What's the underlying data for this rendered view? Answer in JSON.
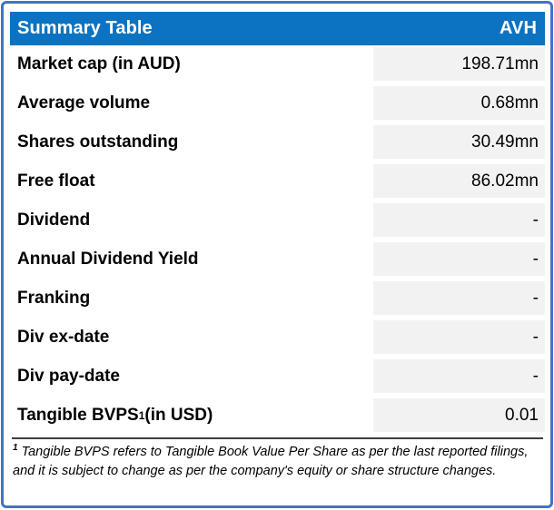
{
  "header": {
    "title": "Summary Table",
    "ticker": "AVH"
  },
  "rows": [
    {
      "label": "Market cap (in AUD)",
      "value": "198.71mn"
    },
    {
      "label": "Average volume",
      "value": "0.68mn"
    },
    {
      "label": "Shares outstanding",
      "value": "30.49mn"
    },
    {
      "label": "Free float",
      "value": "86.02mn"
    },
    {
      "label": "Dividend",
      "value": "-"
    },
    {
      "label": "Annual Dividend Yield",
      "value": "-"
    },
    {
      "label": "Franking",
      "value": "-"
    },
    {
      "label": "Div ex-date",
      "value": "-"
    },
    {
      "label": "Div pay-date",
      "value": "-"
    },
    {
      "label": "Tangible BVPS",
      "label_superscript": "1",
      "label_suffix": " (in USD)",
      "value": "0.01"
    }
  ],
  "footnote": {
    "superscript": "1",
    "text": " Tangible BVPS refers to Tangible Book Value Per Share as per the last reported filings, and it is subject to change as per the company's equity or share structure changes."
  },
  "colors": {
    "border": "#4472C4",
    "header_bg": "#0B73C1",
    "header_text": "#FFFFFF",
    "value_cell_bg": "#F2F2F2",
    "separator": "#3F3F3F",
    "text": "#000000"
  }
}
